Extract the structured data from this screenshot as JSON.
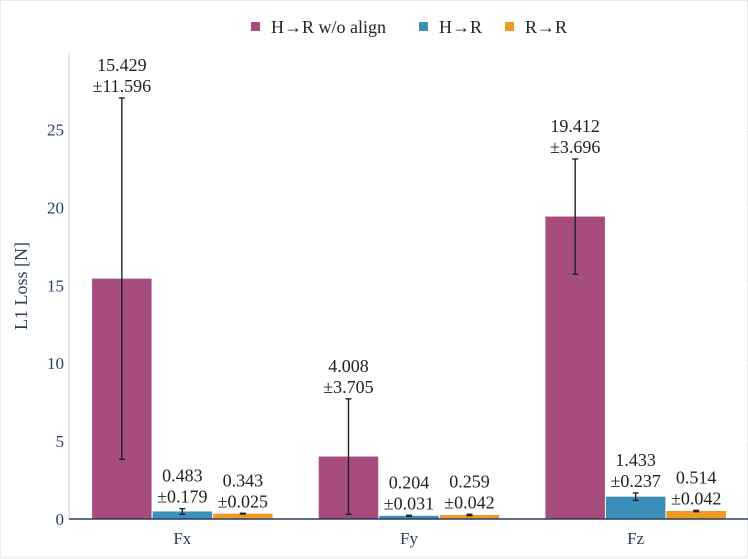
{
  "chart_data": {
    "type": "bar",
    "title": "",
    "xlabel": "",
    "ylabel": "L1 Loss [N]",
    "categories": [
      "Fx",
      "Fy",
      "Fz"
    ],
    "ylim": [
      0,
      29.5
    ],
    "yticks": [
      0,
      5,
      10,
      15,
      20,
      25
    ],
    "legend_position": "top-center",
    "series": [
      {
        "name": "H→R w/o align",
        "color": "#a64d7e",
        "values": [
          15.429,
          4.008,
          19.412
        ],
        "errors": [
          11.596,
          3.705,
          3.696
        ],
        "labels": [
          [
            "15.429",
            "±11.596"
          ],
          [
            "4.008",
            "±3.705"
          ],
          [
            "19.412",
            "±3.696"
          ]
        ]
      },
      {
        "name": "H→R",
        "color": "#3c8fba",
        "values": [
          0.483,
          0.204,
          1.433
        ],
        "errors": [
          0.179,
          0.031,
          0.237
        ],
        "labels": [
          [
            "0.483",
            "±0.179"
          ],
          [
            "0.204",
            "±0.031"
          ],
          [
            "1.433",
            "±0.237"
          ]
        ]
      },
      {
        "name": "R→R",
        "color": "#ef9a22",
        "values": [
          0.343,
          0.259,
          0.514
        ],
        "errors": [
          0.025,
          0.042,
          0.042
        ],
        "labels": [
          [
            "0.343",
            "±0.025"
          ],
          [
            "0.259",
            "±0.042"
          ],
          [
            "0.514",
            "±0.042"
          ]
        ]
      }
    ]
  }
}
